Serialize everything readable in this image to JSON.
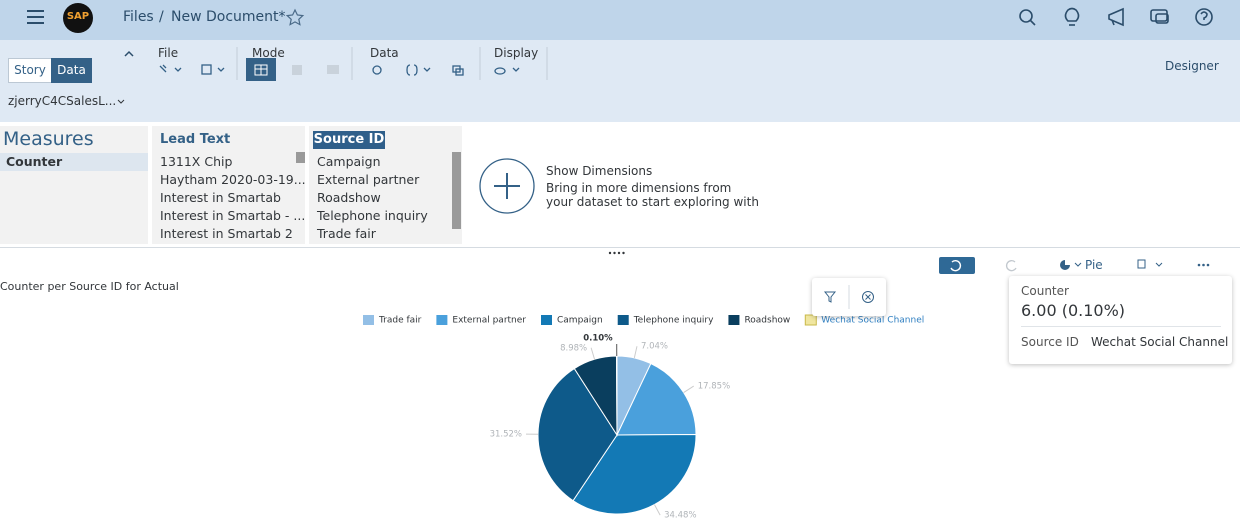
{
  "header": {
    "logo": "SAP",
    "breadcrumb_root": "Files",
    "separator": "/",
    "document": "New Document*"
  },
  "toolbar": {
    "tabs": [
      "Story",
      "Data"
    ],
    "groups": [
      "File",
      "Mode",
      "Data",
      "Display"
    ],
    "designer": "Designer",
    "dataset": "zjerryC4CSalesL..."
  },
  "panels": {
    "measures": {
      "title": "Measures",
      "items": [
        "Counter"
      ]
    },
    "lead_text": {
      "title": "Lead Text",
      "items": [
        "1311X Chip",
        "Haytham 2020-03-19...",
        "Interest in Smartab",
        "Interest in Smartab - ...",
        "Interest in Smartab 2"
      ]
    },
    "source_id": {
      "title": "Source ID",
      "items": [
        "Campaign",
        "External partner",
        "Roadshow",
        "Telephone inquiry",
        "Trade fair"
      ]
    }
  },
  "show_dimensions": {
    "title": "Show Dimensions",
    "text": "Bring in more dimensions from your dataset to start exploring with"
  },
  "chart_toolbar": {
    "chart_type": "Pie"
  },
  "tooltip": {
    "measure": "Counter",
    "value": "6.00 (0.10%)",
    "dimension_label": "Source ID",
    "dimension_value": "Wechat Social Channel"
  },
  "chart_data": {
    "type": "pie",
    "title": "Counter per Source ID for Actual",
    "categories": [
      "Trade fair",
      "External partner",
      "Campaign",
      "Telephone inquiry",
      "Roadshow",
      "Wechat Social Channel"
    ],
    "values": [
      7.04,
      17.85,
      34.48,
      31.52,
      8.98,
      0.1
    ],
    "value_labels": [
      "7.04%",
      "17.85%",
      "34.48%",
      "31.52%",
      "8.98%",
      "0.10%"
    ],
    "colors": [
      "#93bfe6",
      "#4aa0dc",
      "#1379b5",
      "#0e5a8a",
      "#0a3e5e",
      "#f0e6a0"
    ],
    "selected": 5
  }
}
